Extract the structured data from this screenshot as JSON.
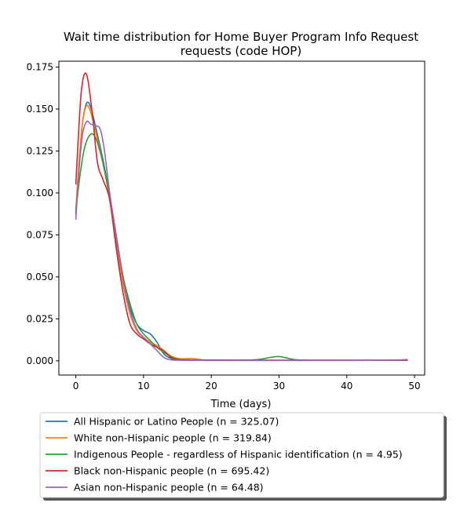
{
  "chart_data": {
    "type": "line",
    "title_line1": "Wait time distribution  for Home Buyer Program Info Request",
    "title_line2": "requests (code HOP)",
    "xlabel": "Time (days)",
    "ylabel": "",
    "xlim": [
      -2.5,
      51.5
    ],
    "ylim": [
      -0.0085,
      0.1785
    ],
    "x_ticks": [
      0,
      10,
      20,
      30,
      40,
      50
    ],
    "x_tick_labels": [
      "0",
      "10",
      "20",
      "30",
      "40",
      "50"
    ],
    "y_ticks": [
      0.0,
      0.025,
      0.05,
      0.075,
      0.1,
      0.125,
      0.15,
      0.175
    ],
    "y_tick_labels": [
      "0.000",
      "0.025",
      "0.050",
      "0.075",
      "0.100",
      "0.125",
      "0.150",
      "0.175"
    ],
    "grid": false,
    "legend_placement": "below plot",
    "series": [
      {
        "name": "All Hispanic or Latino People (n = 325.07)",
        "color": "#1f77b4",
        "points": [
          [
            0,
            0.087
          ],
          [
            0.5,
            0.118
          ],
          [
            1,
            0.142
          ],
          [
            1.6,
            0.1535
          ],
          [
            2.2,
            0.151
          ],
          [
            3,
            0.138
          ],
          [
            4,
            0.12
          ],
          [
            5,
            0.098
          ],
          [
            6,
            0.07
          ],
          [
            7,
            0.048
          ],
          [
            8,
            0.032
          ],
          [
            9,
            0.022
          ],
          [
            10,
            0.018
          ],
          [
            11,
            0.016
          ],
          [
            12,
            0.011
          ],
          [
            13,
            0.004
          ],
          [
            14,
            0.0015
          ],
          [
            15,
            0.0006
          ],
          [
            17,
            0.0004
          ],
          [
            20,
            0.0003
          ],
          [
            25,
            0.0003
          ],
          [
            30,
            0.0003
          ],
          [
            40,
            0.0003
          ],
          [
            47,
            0.0003
          ],
          [
            49,
            0.0005
          ]
        ]
      },
      {
        "name": "White non-Hispanic people (n = 319.84)",
        "color": "#ff7f0e",
        "points": [
          [
            0,
            0.09
          ],
          [
            0.5,
            0.12
          ],
          [
            1,
            0.142
          ],
          [
            1.6,
            0.152
          ],
          [
            2.2,
            0.148
          ],
          [
            3,
            0.135
          ],
          [
            4,
            0.118
          ],
          [
            5,
            0.096
          ],
          [
            6,
            0.068
          ],
          [
            7,
            0.045
          ],
          [
            8,
            0.028
          ],
          [
            9,
            0.018
          ],
          [
            10,
            0.014
          ],
          [
            11,
            0.011
          ],
          [
            12,
            0.009
          ],
          [
            13,
            0.006
          ],
          [
            14,
            0.003
          ],
          [
            15,
            0.0015
          ],
          [
            16,
            0.0012
          ],
          [
            17,
            0.0014
          ],
          [
            18,
            0.001
          ],
          [
            20,
            0.0004
          ],
          [
            30,
            0.0003
          ],
          [
            40,
            0.0003
          ],
          [
            49,
            0.0003
          ]
        ]
      },
      {
        "name": "Indigenous People - regardless of Hispanic identification (n = 4.95)",
        "color": "#2ca02c",
        "points": [
          [
            0,
            0.089
          ],
          [
            0.6,
            0.11
          ],
          [
            1.3,
            0.127
          ],
          [
            2.2,
            0.135
          ],
          [
            3,
            0.132
          ],
          [
            4,
            0.118
          ],
          [
            5,
            0.098
          ],
          [
            6,
            0.074
          ],
          [
            7,
            0.05
          ],
          [
            8,
            0.034
          ],
          [
            9,
            0.022
          ],
          [
            10,
            0.016
          ],
          [
            11,
            0.012
          ],
          [
            12,
            0.008
          ],
          [
            13,
            0.005
          ],
          [
            14,
            0.0025
          ],
          [
            15,
            0.001
          ],
          [
            17,
            0.0005
          ],
          [
            20,
            0.0004
          ],
          [
            25,
            0.0004
          ],
          [
            27,
            0.0008
          ],
          [
            29,
            0.0022
          ],
          [
            30,
            0.0025
          ],
          [
            31,
            0.0018
          ],
          [
            32.5,
            0.0006
          ],
          [
            35,
            0.0003
          ],
          [
            40,
            0.0003
          ],
          [
            49,
            0.0003
          ]
        ]
      },
      {
        "name": "Black non-Hispanic people (n = 695.42)",
        "color": "#d62728",
        "points": [
          [
            0,
            0.105
          ],
          [
            0.4,
            0.135
          ],
          [
            0.8,
            0.16
          ],
          [
            1.3,
            0.171
          ],
          [
            1.8,
            0.167
          ],
          [
            2.5,
            0.145
          ],
          [
            3.2,
            0.118
          ],
          [
            4,
            0.108
          ],
          [
            5,
            0.096
          ],
          [
            6,
            0.066
          ],
          [
            7,
            0.04
          ],
          [
            8,
            0.022
          ],
          [
            9,
            0.016
          ],
          [
            10,
            0.013
          ],
          [
            11,
            0.01
          ],
          [
            12,
            0.008
          ],
          [
            13,
            0.006
          ],
          [
            14,
            0.002
          ],
          [
            15,
            0.0008
          ],
          [
            17,
            0.0005
          ],
          [
            20,
            0.0003
          ],
          [
            30,
            0.0003
          ],
          [
            40,
            0.0003
          ],
          [
            49,
            0.0003
          ]
        ]
      },
      {
        "name": "Asian non-Hispanic people (n = 64.48)",
        "color": "#9467bd",
        "points": [
          [
            0,
            0.084
          ],
          [
            0.5,
            0.115
          ],
          [
            1,
            0.135
          ],
          [
            1.6,
            0.1425
          ],
          [
            2.2,
            0.141
          ],
          [
            3,
            0.14
          ],
          [
            3.6,
            0.138
          ],
          [
            4.2,
            0.126
          ],
          [
            5,
            0.1
          ],
          [
            6,
            0.074
          ],
          [
            7,
            0.048
          ],
          [
            8,
            0.03
          ],
          [
            9,
            0.019
          ],
          [
            10,
            0.014
          ],
          [
            11,
            0.01
          ],
          [
            12,
            0.006
          ],
          [
            13,
            0.002
          ],
          [
            14,
            0.0006
          ],
          [
            16,
            0.0003
          ],
          [
            20,
            0.0002
          ],
          [
            30,
            0.0002
          ],
          [
            40,
            0.0002
          ],
          [
            47,
            0.0004
          ],
          [
            49,
            0.0008
          ]
        ]
      }
    ]
  }
}
